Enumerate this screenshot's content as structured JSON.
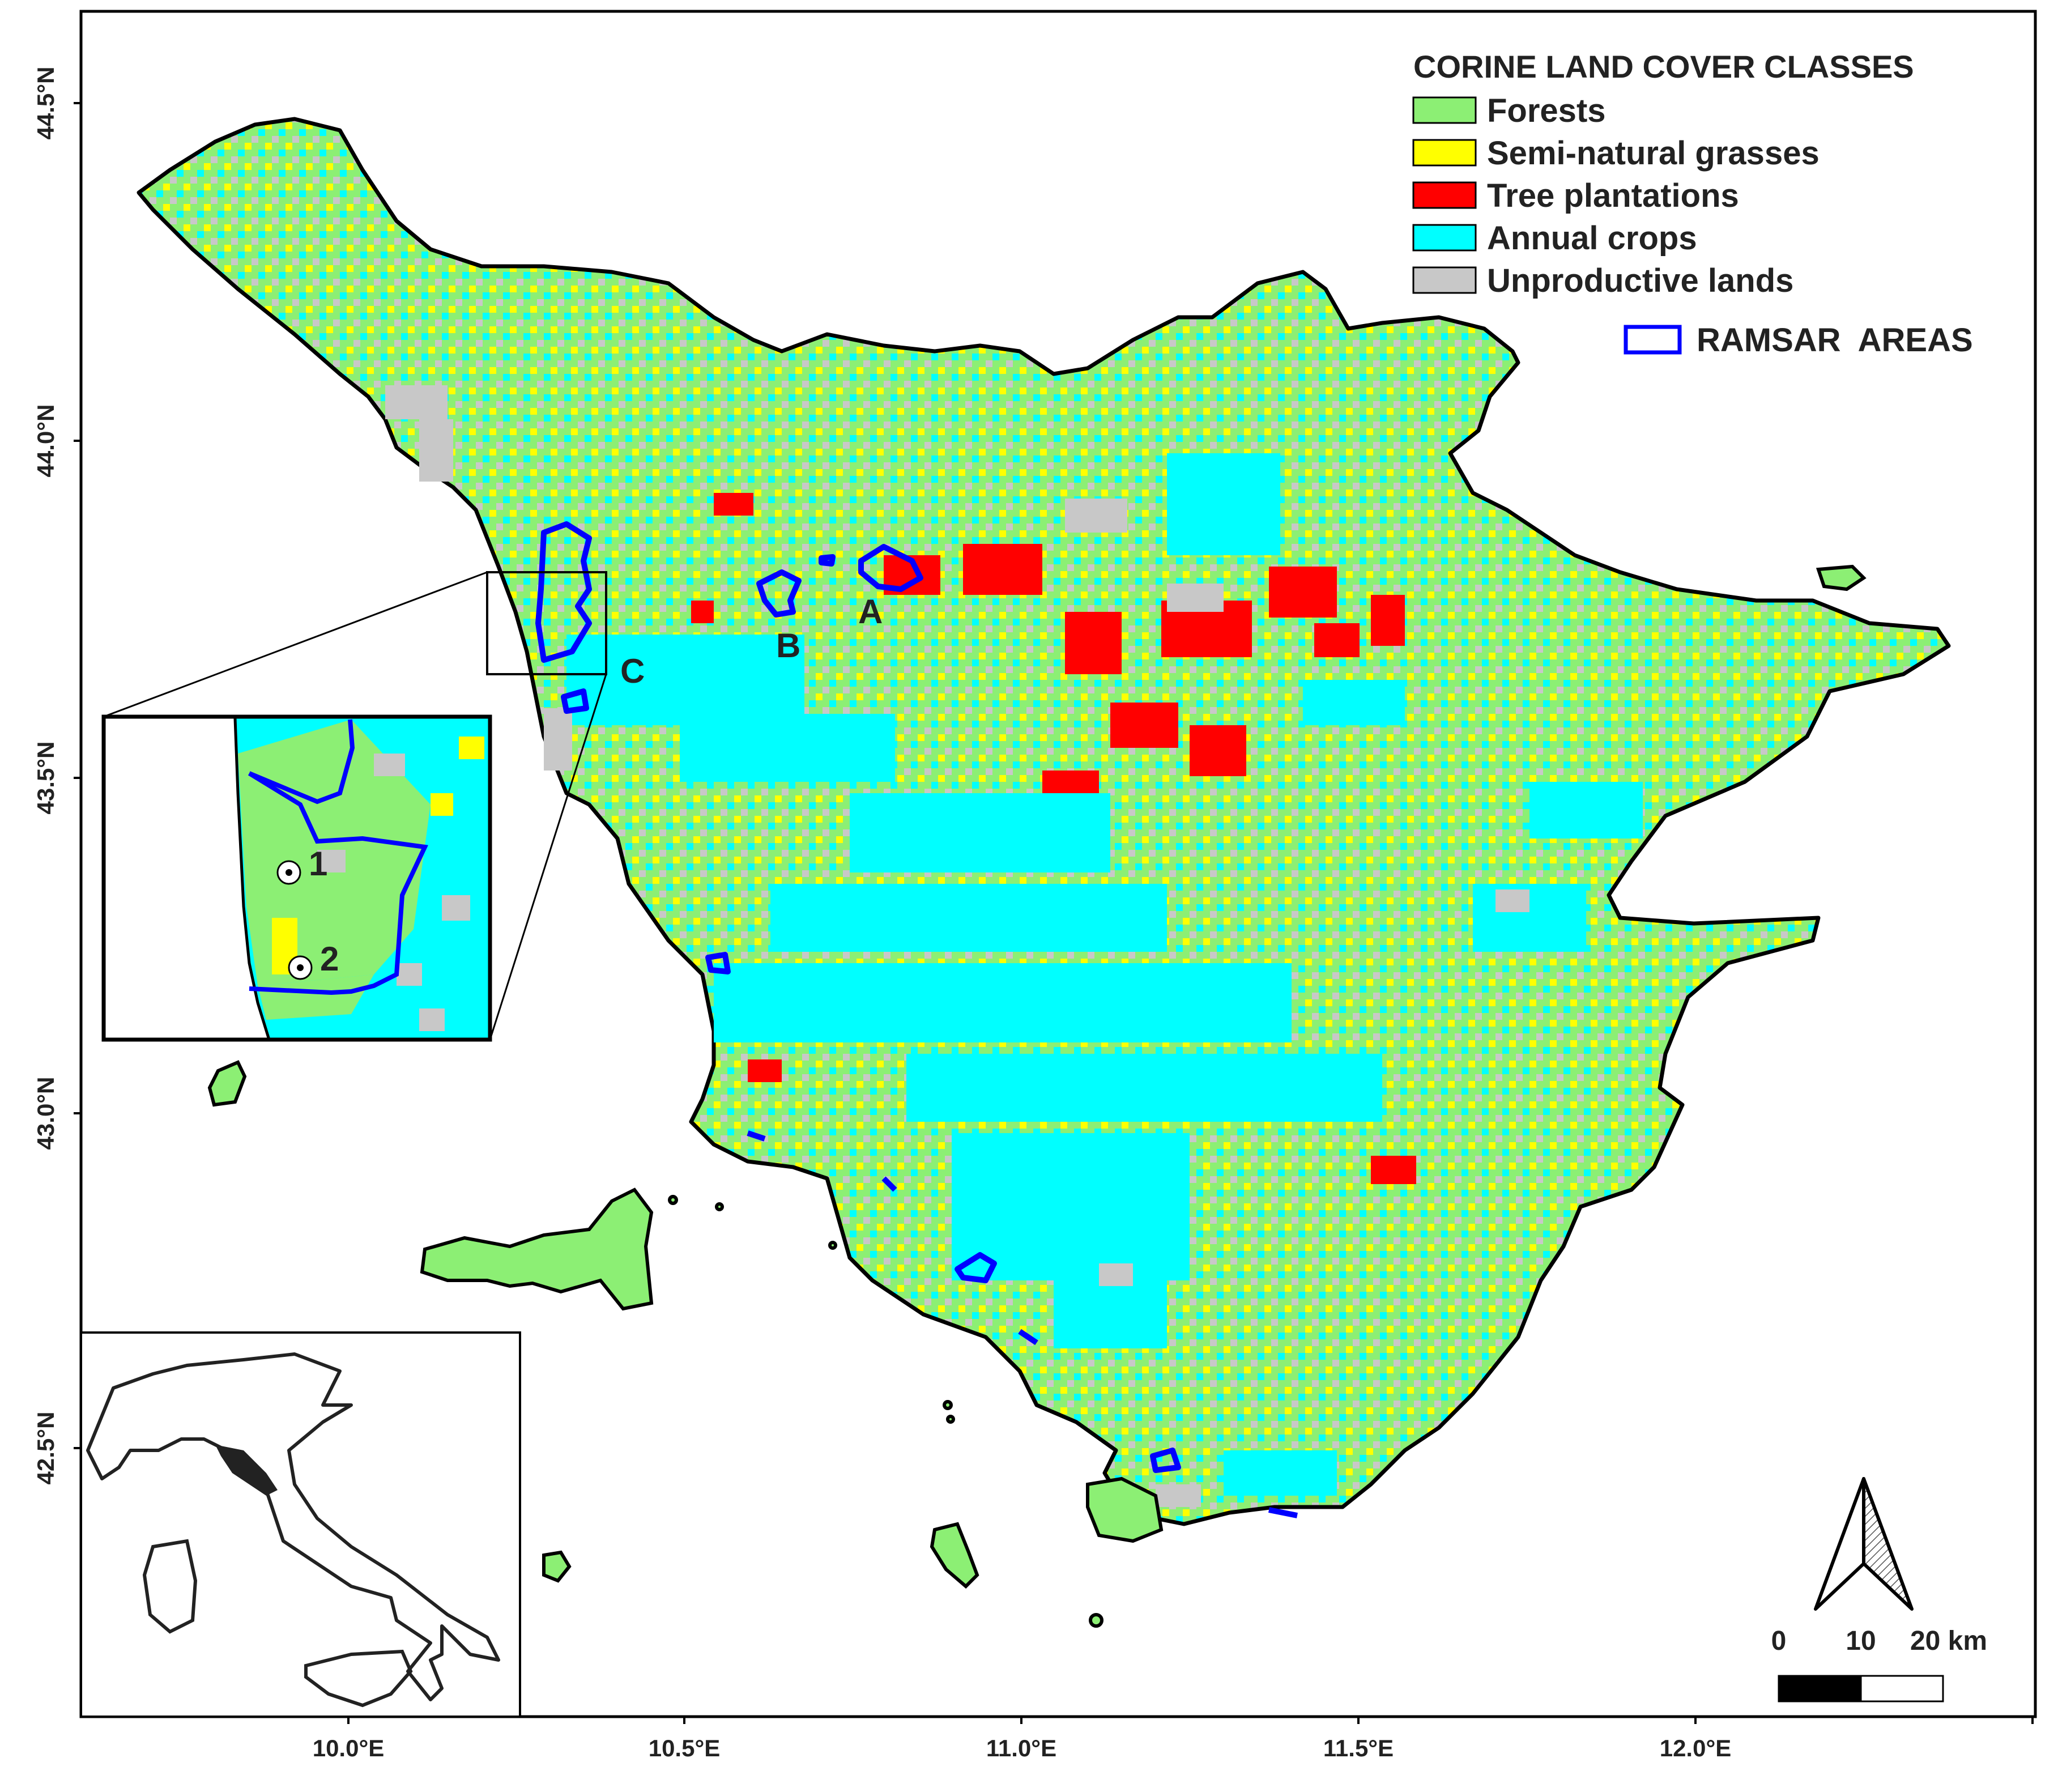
{
  "legend": {
    "title": "CORINE LAND COVER CLASSES",
    "items": [
      {
        "label": "Forests",
        "color": "#8cef74"
      },
      {
        "label": "Semi-natural grasses",
        "color": "#ffff00"
      },
      {
        "label": "Tree plantations",
        "color": "#ff0000"
      },
      {
        "label": "Annual crops",
        "color": "#00ffff"
      },
      {
        "label": "Unproductive lands",
        "color": "#c8c8c8"
      }
    ],
    "ramsar_label": "RAMSAR  AREAS",
    "ramsar_color": "#0000ff"
  },
  "axes": {
    "lat_ticks": [
      "44.5°N",
      "44.0°N",
      "43.5°N",
      "43.0°N",
      "42.5°N"
    ],
    "lon_ticks": [
      "10.0°E",
      "10.5°E",
      "11.0°E",
      "11.5°E",
      "12.0°E"
    ]
  },
  "site_labels": {
    "a": "A",
    "b": "B",
    "c": "C"
  },
  "inset_points": {
    "p1": "1",
    "p2": "2"
  },
  "scale_bar": {
    "zero": "0",
    "mid": "10",
    "end": "20 km"
  }
}
